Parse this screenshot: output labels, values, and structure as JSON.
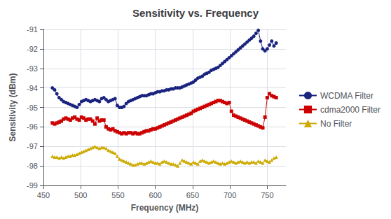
{
  "chart_data": {
    "type": "line",
    "title": "Sensitivity vs. Frequency",
    "xlabel": "Frequency (MHz)",
    "ylabel": "Sensitivity (dBm)",
    "xlim": [
      450,
      775
    ],
    "ylim": [
      -99,
      -91
    ],
    "xticks": [
      450,
      500,
      550,
      600,
      650,
      700,
      750
    ],
    "yticks": [
      -99,
      -98,
      -97,
      -96,
      -95,
      -94,
      -93,
      -92,
      -91
    ],
    "grid": true,
    "legend": "right",
    "x": [
      462,
      465,
      468,
      471,
      474,
      477,
      480,
      483,
      486,
      489,
      492,
      495,
      498,
      501,
      504,
      507,
      510,
      513,
      516,
      519,
      522,
      525,
      528,
      531,
      534,
      537,
      540,
      543,
      546,
      549,
      552,
      555,
      558,
      561,
      564,
      567,
      570,
      573,
      576,
      579,
      582,
      585,
      588,
      591,
      594,
      597,
      600,
      603,
      606,
      609,
      612,
      615,
      618,
      621,
      624,
      627,
      630,
      633,
      636,
      639,
      642,
      645,
      648,
      651,
      654,
      657,
      660,
      663,
      666,
      669,
      672,
      675,
      678,
      681,
      684,
      687,
      690,
      693,
      696,
      699,
      702,
      705,
      708,
      711,
      714,
      717,
      720,
      723,
      726,
      729,
      732,
      735,
      738,
      741,
      744,
      747,
      750,
      753,
      756,
      759,
      762
    ],
    "series": [
      {
        "name": "WCDMA Filter",
        "color": "#1a237e",
        "marker": "circle",
        "values": [
          -94.0,
          -94.1,
          -94.3,
          -94.5,
          -94.6,
          -94.7,
          -94.75,
          -94.8,
          -94.85,
          -94.9,
          -94.95,
          -95.0,
          -94.85,
          -94.7,
          -94.65,
          -94.6,
          -94.65,
          -94.7,
          -94.65,
          -94.6,
          -94.65,
          -94.7,
          -94.55,
          -94.5,
          -94.6,
          -94.7,
          -94.65,
          -94.6,
          -94.55,
          -94.9,
          -95.0,
          -95.0,
          -94.95,
          -94.8,
          -94.7,
          -94.65,
          -94.6,
          -94.55,
          -94.5,
          -94.45,
          -94.4,
          -94.4,
          -94.4,
          -94.35,
          -94.3,
          -94.3,
          -94.25,
          -94.2,
          -94.2,
          -94.15,
          -94.15,
          -94.1,
          -94.1,
          -94.05,
          -94.05,
          -94.0,
          -94.0,
          -94.0,
          -93.95,
          -93.9,
          -93.85,
          -93.8,
          -93.75,
          -93.7,
          -93.6,
          -93.5,
          -93.45,
          -93.4,
          -93.3,
          -93.25,
          -93.2,
          -93.1,
          -93.05,
          -93.0,
          -92.95,
          -92.85,
          -92.75,
          -92.65,
          -92.55,
          -92.45,
          -92.35,
          -92.25,
          -92.15,
          -92.05,
          -91.95,
          -91.85,
          -91.75,
          -91.65,
          -91.55,
          -91.45,
          -91.35,
          -91.2,
          -91.05,
          -91.6,
          -92.0,
          -92.1,
          -92.0,
          -91.8,
          -91.6,
          -91.85,
          -91.7
        ]
      },
      {
        "name": "cdma2000 Filter",
        "color": "#cc0000",
        "marker": "square",
        "values": [
          -95.8,
          -95.85,
          -95.8,
          -95.75,
          -95.7,
          -95.6,
          -95.55,
          -95.6,
          -95.65,
          -95.55,
          -95.5,
          -95.6,
          -95.65,
          -95.5,
          -95.55,
          -95.65,
          -95.6,
          -95.6,
          -95.7,
          -95.85,
          -95.55,
          -95.7,
          -95.65,
          -95.65,
          -96.0,
          -96.1,
          -96.15,
          -96.1,
          -96.2,
          -96.25,
          -96.3,
          -96.35,
          -96.3,
          -96.35,
          -96.3,
          -96.3,
          -96.35,
          -96.3,
          -96.35,
          -96.35,
          -96.3,
          -96.25,
          -96.2,
          -96.2,
          -96.15,
          -96.1,
          -96.1,
          -96.05,
          -96.0,
          -95.95,
          -95.9,
          -95.85,
          -95.8,
          -95.75,
          -95.7,
          -95.65,
          -95.6,
          -95.55,
          -95.5,
          -95.45,
          -95.4,
          -95.35,
          -95.3,
          -95.2,
          -95.15,
          -95.1,
          -95.05,
          -95.0,
          -94.95,
          -94.9,
          -94.85,
          -94.8,
          -94.75,
          -94.7,
          -94.65,
          -94.65,
          -94.7,
          -94.75,
          -94.8,
          -94.75,
          -95.2,
          -95.4,
          -95.45,
          -95.5,
          -95.55,
          -95.6,
          -95.65,
          -95.7,
          -95.75,
          -95.8,
          -95.85,
          -95.9,
          -95.95,
          -96.0,
          -96.05,
          -95.5,
          -94.5,
          -94.3,
          -94.4,
          -94.45,
          -94.5
        ]
      },
      {
        "name": "No Filter",
        "color": "#ccaa00",
        "marker": "triangle",
        "values": [
          -97.5,
          -97.55,
          -97.55,
          -97.6,
          -97.55,
          -97.6,
          -97.55,
          -97.5,
          -97.5,
          -97.45,
          -97.45,
          -97.4,
          -97.35,
          -97.3,
          -97.25,
          -97.2,
          -97.15,
          -97.1,
          -97.05,
          -97.0,
          -97.05,
          -97.1,
          -97.05,
          -97.05,
          -97.1,
          -97.2,
          -97.25,
          -97.3,
          -97.35,
          -97.5,
          -97.65,
          -97.7,
          -97.75,
          -97.8,
          -97.85,
          -97.9,
          -97.95,
          -97.95,
          -97.9,
          -97.85,
          -97.85,
          -97.9,
          -97.85,
          -97.8,
          -97.75,
          -97.8,
          -97.85,
          -97.85,
          -97.9,
          -97.8,
          -97.75,
          -97.8,
          -97.85,
          -97.9,
          -97.9,
          -97.95,
          -98.0,
          -97.85,
          -97.7,
          -97.75,
          -97.8,
          -97.85,
          -97.9,
          -97.8,
          -97.85,
          -97.9,
          -97.75,
          -97.7,
          -97.75,
          -97.8,
          -97.85,
          -97.8,
          -97.75,
          -97.8,
          -97.85,
          -97.9,
          -97.85,
          -97.9,
          -97.85,
          -97.8,
          -97.75,
          -97.8,
          -97.85,
          -97.8,
          -97.75,
          -97.8,
          -97.85,
          -97.8,
          -97.85,
          -97.8,
          -97.8,
          -97.85,
          -97.75,
          -97.8,
          -97.85,
          -97.7,
          -97.75,
          -97.8,
          -97.7,
          -97.6,
          -97.55
        ]
      }
    ]
  }
}
